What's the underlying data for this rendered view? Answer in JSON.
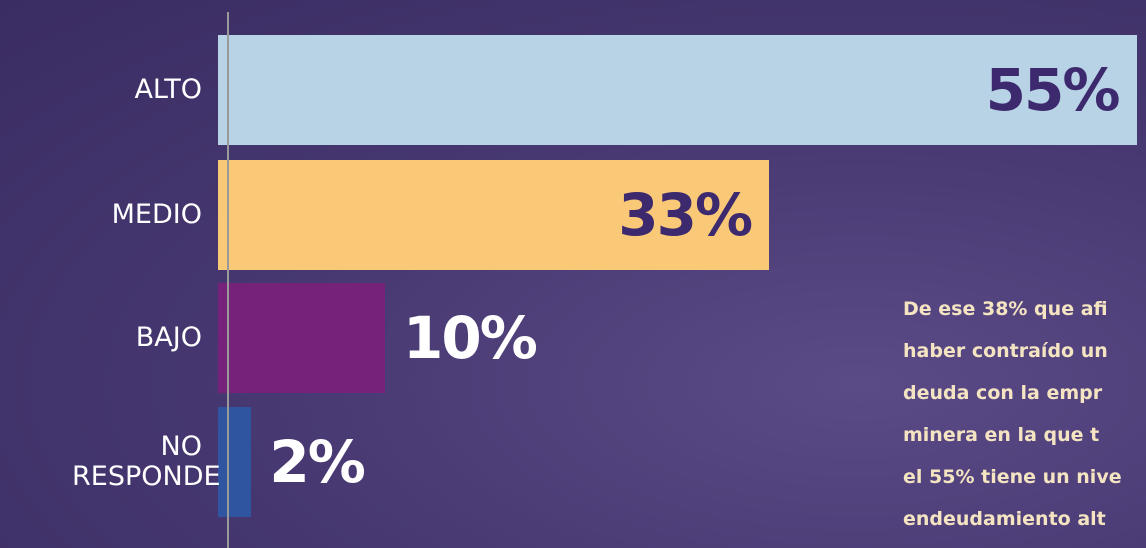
{
  "chart_data": {
    "type": "bar",
    "orientation": "horizontal",
    "categories": [
      "ALTO",
      "MEDIO",
      "BAJO",
      "NO RESPONDE"
    ],
    "values": [
      55,
      33,
      10,
      2
    ],
    "value_labels": [
      "55%",
      "33%",
      "10%",
      "2%"
    ],
    "colors": [
      "#b9d3e6",
      "#f9c978",
      "#76217a",
      "#2f55a0"
    ],
    "annotation": [
      "De ese 38% que afi",
      "haber contraído un",
      "deuda con la empr",
      "minera en la que t",
      "el 55% tiene un nive",
      "endeudamiento alt"
    ]
  }
}
